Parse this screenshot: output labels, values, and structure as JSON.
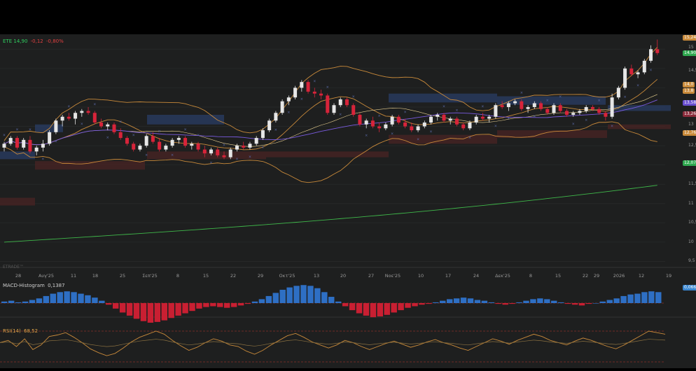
{
  "header": {
    "symbol": "ETE",
    "price": "14,90",
    "change": "-0,12",
    "change_pct": "-0,80%"
  },
  "watermark": "ETRADE™",
  "macd": {
    "label": "MACD-Histogram",
    "value": "0,1387",
    "badge": "0,066"
  },
  "rsi": {
    "label": "RSI(14)",
    "value": "68,52"
  },
  "price_badges": [
    {
      "text": "15,246",
      "color": "#c98a3a"
    },
    {
      "text": "14,90",
      "color": "#2fa84f"
    },
    {
      "text": "14,0",
      "color": "#c98a3a"
    },
    {
      "text": "13,8",
      "color": "#c98a3a"
    },
    {
      "text": "13,58",
      "color": "#6a4fd0"
    },
    {
      "text": "13,26",
      "color": "#8a2a3a"
    },
    {
      "text": "12,763",
      "color": "#c98a3a"
    },
    {
      "text": "12,07",
      "color": "#2fa84f"
    }
  ],
  "price_axis_labels": [
    "15",
    "14,5",
    "13",
    "12,5",
    "11,5",
    "11",
    "10,5",
    "10",
    "9,5"
  ],
  "chart_data": {
    "type": "candlestick",
    "x_labels": [
      "28",
      "Αυγ'25",
      "11",
      "18",
      "25",
      "Σεπ'25",
      "8",
      "15",
      "22",
      "29",
      "Οκτ'25",
      "13",
      "20",
      "27",
      "Νοε'25",
      "10",
      "17",
      "24",
      "Δεκ'25",
      "8",
      "15",
      "22",
      "29",
      "2026",
      "12",
      "19"
    ],
    "ohlc": [
      [
        12.45,
        12.6,
        12.35,
        12.55
      ],
      [
        12.55,
        12.75,
        12.5,
        12.7
      ],
      [
        12.7,
        12.75,
        12.4,
        12.45
      ],
      [
        12.45,
        12.7,
        12.4,
        12.65
      ],
      [
        12.65,
        12.75,
        12.3,
        12.35
      ],
      [
        12.35,
        12.5,
        12.25,
        12.45
      ],
      [
        12.45,
        12.65,
        12.35,
        12.55
      ],
      [
        12.55,
        12.9,
        12.5,
        12.85
      ],
      [
        12.85,
        13.2,
        12.8,
        13.15
      ],
      [
        13.15,
        13.3,
        13.0,
        13.25
      ],
      [
        13.25,
        13.35,
        13.15,
        13.2
      ],
      [
        13.2,
        13.4,
        13.05,
        13.35
      ],
      [
        13.35,
        13.45,
        13.25,
        13.4
      ],
      [
        13.4,
        13.5,
        13.3,
        13.35
      ],
      [
        13.35,
        13.4,
        13.05,
        13.1
      ],
      [
        13.1,
        13.2,
        12.95,
        13.0
      ],
      [
        13.0,
        13.1,
        12.9,
        13.05
      ],
      [
        13.05,
        13.1,
        12.8,
        12.85
      ],
      [
        12.85,
        12.95,
        12.65,
        12.7
      ],
      [
        12.7,
        12.75,
        12.5,
        12.55
      ],
      [
        12.55,
        12.6,
        12.35,
        12.4
      ],
      [
        12.4,
        12.55,
        12.35,
        12.5
      ],
      [
        12.5,
        12.8,
        12.45,
        12.75
      ],
      [
        12.75,
        12.85,
        12.55,
        12.6
      ],
      [
        12.6,
        12.7,
        12.35,
        12.4
      ],
      [
        12.4,
        12.55,
        12.35,
        12.5
      ],
      [
        12.5,
        12.7,
        12.45,
        12.65
      ],
      [
        12.65,
        12.75,
        12.55,
        12.7
      ],
      [
        12.7,
        12.75,
        12.45,
        12.5
      ],
      [
        12.5,
        12.6,
        12.4,
        12.55
      ],
      [
        12.55,
        12.6,
        12.35,
        12.4
      ],
      [
        12.4,
        12.5,
        12.2,
        12.3
      ],
      [
        12.3,
        12.45,
        12.25,
        12.4
      ],
      [
        12.4,
        12.45,
        12.2,
        12.25
      ],
      [
        12.25,
        12.35,
        12.15,
        12.2
      ],
      [
        12.2,
        12.45,
        12.15,
        12.4
      ],
      [
        12.4,
        12.55,
        12.35,
        12.5
      ],
      [
        12.5,
        12.6,
        12.4,
        12.45
      ],
      [
        12.45,
        12.6,
        12.4,
        12.55
      ],
      [
        12.55,
        12.75,
        12.5,
        12.7
      ],
      [
        12.7,
        12.95,
        12.65,
        12.9
      ],
      [
        12.9,
        13.2,
        12.85,
        13.15
      ],
      [
        13.15,
        13.4,
        13.1,
        13.35
      ],
      [
        13.35,
        13.7,
        13.3,
        13.65
      ],
      [
        13.65,
        13.8,
        13.55,
        13.75
      ],
      [
        13.75,
        14.05,
        13.7,
        14.0
      ],
      [
        14.0,
        14.2,
        13.9,
        14.15
      ],
      [
        14.15,
        14.2,
        13.85,
        13.9
      ],
      [
        13.9,
        14.0,
        13.75,
        13.85
      ],
      [
        13.85,
        13.95,
        13.7,
        13.8
      ],
      [
        13.8,
        13.85,
        13.3,
        13.35
      ],
      [
        13.35,
        13.6,
        13.3,
        13.55
      ],
      [
        13.55,
        13.75,
        13.5,
        13.7
      ],
      [
        13.7,
        13.75,
        13.5,
        13.55
      ],
      [
        13.55,
        13.6,
        13.25,
        13.3
      ],
      [
        13.3,
        13.35,
        13.0,
        13.05
      ],
      [
        13.05,
        13.2,
        12.95,
        13.15
      ],
      [
        13.15,
        13.25,
        12.95,
        13.0
      ],
      [
        13.0,
        13.1,
        12.85,
        12.95
      ],
      [
        12.95,
        13.1,
        12.9,
        13.05
      ],
      [
        13.05,
        13.3,
        13.0,
        13.25
      ],
      [
        13.25,
        13.3,
        13.05,
        13.1
      ],
      [
        13.1,
        13.2,
        12.95,
        13.0
      ],
      [
        13.0,
        13.1,
        12.85,
        12.9
      ],
      [
        12.9,
        13.05,
        12.85,
        13.0
      ],
      [
        13.0,
        13.15,
        12.95,
        13.1
      ],
      [
        13.1,
        13.3,
        13.05,
        13.25
      ],
      [
        13.25,
        13.35,
        13.15,
        13.3
      ],
      [
        13.3,
        13.35,
        13.1,
        13.15
      ],
      [
        13.15,
        13.25,
        13.05,
        13.2
      ],
      [
        13.2,
        13.25,
        13.0,
        13.05
      ],
      [
        13.05,
        13.1,
        12.9,
        12.95
      ],
      [
        12.95,
        13.15,
        12.9,
        13.1
      ],
      [
        13.1,
        13.3,
        13.05,
        13.25
      ],
      [
        13.25,
        13.35,
        13.15,
        13.2
      ],
      [
        13.2,
        13.3,
        13.1,
        13.25
      ],
      [
        13.25,
        13.6,
        13.2,
        13.55
      ],
      [
        13.55,
        13.65,
        13.45,
        13.5
      ],
      [
        13.5,
        13.65,
        13.4,
        13.6
      ],
      [
        13.6,
        13.7,
        13.55,
        13.65
      ],
      [
        13.65,
        13.7,
        13.4,
        13.45
      ],
      [
        13.45,
        13.55,
        13.35,
        13.5
      ],
      [
        13.5,
        13.65,
        13.45,
        13.6
      ],
      [
        13.6,
        13.65,
        13.4,
        13.45
      ],
      [
        13.45,
        13.5,
        13.3,
        13.35
      ],
      [
        13.35,
        13.6,
        13.3,
        13.55
      ],
      [
        13.55,
        13.6,
        13.35,
        13.4
      ],
      [
        13.4,
        13.45,
        13.25,
        13.3
      ],
      [
        13.3,
        13.4,
        13.25,
        13.35
      ],
      [
        13.35,
        13.45,
        13.3,
        13.4
      ],
      [
        13.4,
        13.55,
        13.35,
        13.5
      ],
      [
        13.5,
        13.55,
        13.4,
        13.45
      ],
      [
        13.45,
        13.5,
        13.3,
        13.35
      ],
      [
        13.35,
        13.4,
        13.15,
        13.25
      ],
      [
        13.25,
        13.85,
        13.2,
        13.75
      ],
      [
        13.75,
        14.05,
        13.7,
        14.0
      ],
      [
        14.0,
        14.55,
        13.95,
        14.5
      ],
      [
        14.5,
        14.6,
        14.3,
        14.35
      ],
      [
        14.35,
        14.45,
        14.25,
        14.4
      ],
      [
        14.4,
        14.75,
        14.35,
        14.7
      ],
      [
        14.7,
        15.1,
        14.65,
        15.0
      ],
      [
        15.0,
        15.25,
        14.85,
        14.9
      ]
    ],
    "overlays": [
      "Bollinger Bands",
      "SMA",
      "EMA",
      "Parabolic SAR",
      "Support/Resistance zones"
    ],
    "ylim": [
      9.4,
      15.35
    ],
    "macd_histogram": [
      0.02,
      0.03,
      0.01,
      0.02,
      0.04,
      0.06,
      0.09,
      0.12,
      0.14,
      0.15,
      0.14,
      0.12,
      0.1,
      0.07,
      0.03,
      -0.02,
      -0.07,
      -0.12,
      -0.16,
      -0.2,
      -0.23,
      -0.25,
      -0.24,
      -0.22,
      -0.19,
      -0.16,
      -0.13,
      -0.1,
      -0.07,
      -0.05,
      -0.04,
      -0.05,
      -0.06,
      -0.05,
      -0.03,
      -0.01,
      0.02,
      0.05,
      0.09,
      0.13,
      0.17,
      0.2,
      0.22,
      0.23,
      0.22,
      0.19,
      0.14,
      0.08,
      0.02,
      -0.04,
      -0.09,
      -0.13,
      -0.16,
      -0.18,
      -0.17,
      -0.15,
      -0.12,
      -0.09,
      -0.06,
      -0.04,
      -0.02,
      -0.01,
      0.01,
      0.03,
      0.05,
      0.06,
      0.07,
      0.06,
      0.04,
      0.03,
      0.01,
      -0.01,
      -0.02,
      -0.01,
      0.01,
      0.03,
      0.05,
      0.06,
      0.05,
      0.03,
      0.01,
      -0.01,
      -0.02,
      -0.03,
      -0.01,
      0.0,
      0.02,
      0.04,
      0.06,
      0.09,
      0.11,
      0.12,
      0.14,
      0.15,
      0.14
    ],
    "rsi": [
      55,
      58,
      50,
      60,
      46,
      52,
      63,
      65,
      68,
      62,
      55,
      47,
      42,
      38,
      41,
      48,
      56,
      62,
      66,
      70,
      66,
      58,
      51,
      45,
      49,
      55,
      60,
      57,
      52,
      50,
      44,
      40,
      45,
      52,
      58,
      64,
      67,
      62,
      56,
      52,
      48,
      52,
      58,
      55,
      50,
      46,
      50,
      54,
      57,
      53,
      49,
      52,
      56,
      59,
      55,
      52,
      48,
      45,
      50,
      55,
      60,
      57,
      53,
      58,
      62,
      66,
      63,
      58,
      55,
      52,
      57,
      61,
      58,
      54,
      50,
      47,
      52,
      58,
      64,
      70,
      68,
      66
    ]
  }
}
